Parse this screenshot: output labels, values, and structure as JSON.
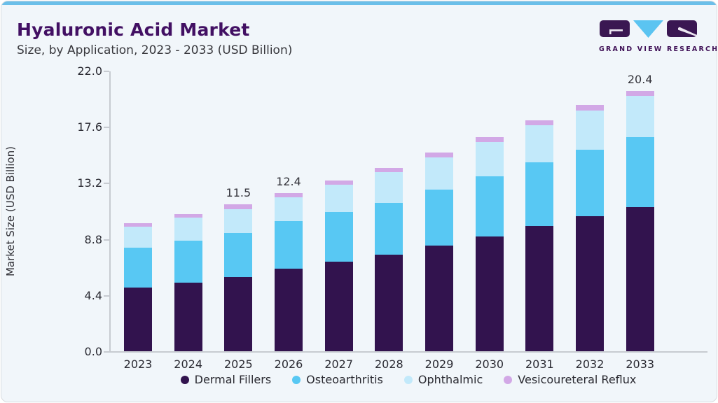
{
  "card": {
    "title": "Hyaluronic Acid Market",
    "subtitle": "Size, by Application, 2023 - 2033 (USD Billion)",
    "accent_color": "#6BBFE9",
    "background_color": "#F1F6FA"
  },
  "logo": {
    "brand": "GRAND VIEW RESEARCH",
    "square_color": "#3A1752",
    "triangle_color": "#5BC4F1"
  },
  "chart_data": {
    "type": "bar",
    "stacked": true,
    "title": "Hyaluronic Acid Market",
    "subtitle": "Size, by Application, 2023 - 2033 (USD Billion)",
    "xlabel": "",
    "ylabel": "Market Size (USD Billion)",
    "ylim": [
      0,
      22
    ],
    "yticks": [
      0.0,
      4.4,
      8.8,
      13.2,
      17.6,
      22.0
    ],
    "grid": false,
    "legend_position": "bottom",
    "categories": [
      "2023",
      "2024",
      "2025",
      "2026",
      "2027",
      "2028",
      "2029",
      "2030",
      "2031",
      "2032",
      "2033"
    ],
    "series": [
      {
        "name": "Dermal Fillers",
        "color": "#32134E",
        "values": [
          5.0,
          5.36,
          5.8,
          6.5,
          7.0,
          7.55,
          8.3,
          9.0,
          9.8,
          10.6,
          11.3
        ]
      },
      {
        "name": "Osteoarthritis",
        "color": "#58C8F3",
        "values": [
          3.1,
          3.33,
          3.5,
          3.73,
          3.9,
          4.1,
          4.4,
          4.7,
          5.0,
          5.2,
          5.5
        ]
      },
      {
        "name": "Ophthalmic",
        "color": "#C2E9FA",
        "values": [
          1.65,
          1.77,
          1.85,
          1.85,
          2.15,
          2.4,
          2.5,
          2.7,
          2.9,
          3.1,
          3.25
        ]
      },
      {
        "name": "Vesicoureteral Reflux",
        "color": "#D2A8E6",
        "values": [
          0.28,
          0.3,
          0.35,
          0.32,
          0.35,
          0.35,
          0.4,
          0.4,
          0.4,
          0.4,
          0.35
        ]
      }
    ],
    "totals": [
      10.03,
      10.76,
      11.5,
      12.4,
      13.4,
      14.4,
      15.6,
      16.8,
      18.1,
      19.3,
      20.4
    ],
    "bar_value_labels": {
      "2025": "11.5",
      "2026": "12.4",
      "2033": "20.4"
    },
    "tick_decimals": 1
  }
}
